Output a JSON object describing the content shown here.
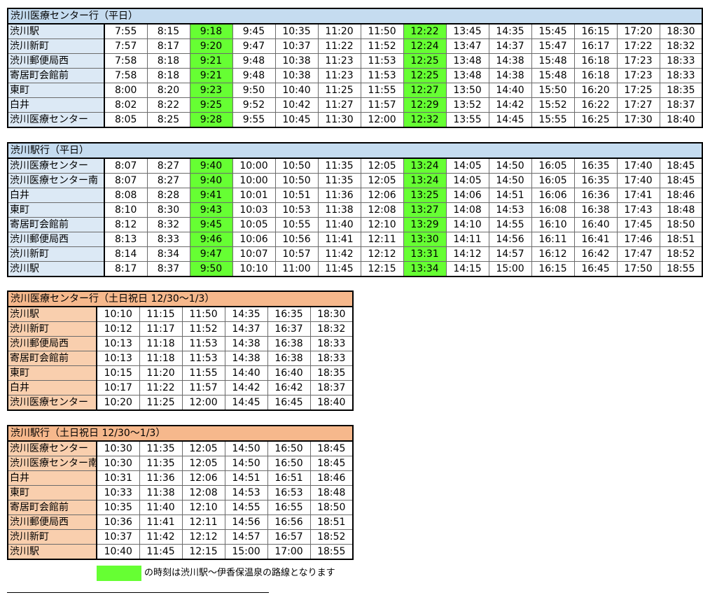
{
  "colors": {
    "highlight": "#66ff33",
    "weekday_header": "#c5dcf0",
    "weekday_stop": "#dce9f5",
    "holiday_header": "#f6b88c",
    "holiday_stop": "#f9cfae"
  },
  "tables": [
    {
      "id": "t1",
      "kind": "weekday",
      "title": "渋川医療センター行（平日）",
      "col_widths": [
        138,
        61,
        61,
        61,
        61,
        61,
        61,
        61,
        61,
        61,
        61,
        61,
        61,
        61,
        61
      ],
      "highlight_cols": [
        2,
        7
      ],
      "rows": [
        {
          "stop": "渋川駅",
          "times": [
            "7:55",
            "8:15",
            "9:18",
            "9:45",
            "10:35",
            "11:20",
            "11:50",
            "12:22",
            "13:45",
            "14:35",
            "15:45",
            "16:15",
            "17:20",
            "18:30"
          ]
        },
        {
          "stop": "渋川新町",
          "times": [
            "7:57",
            "8:17",
            "9:20",
            "9:47",
            "10:37",
            "11:22",
            "11:52",
            "12:24",
            "13:47",
            "14:37",
            "15:47",
            "16:17",
            "17:22",
            "18:32"
          ]
        },
        {
          "stop": "渋川郵便局西",
          "times": [
            "7:58",
            "8:18",
            "9:21",
            "9:48",
            "10:38",
            "11:23",
            "11:53",
            "12:25",
            "13:48",
            "14:38",
            "15:48",
            "16:18",
            "17:23",
            "18:33"
          ]
        },
        {
          "stop": "寄居町会館前",
          "times": [
            "7:58",
            "8:18",
            "9:21",
            "9:48",
            "10:38",
            "11:23",
            "11:53",
            "12:25",
            "13:48",
            "14:38",
            "15:48",
            "16:18",
            "17:23",
            "18:33"
          ]
        },
        {
          "stop": "東町",
          "times": [
            "8:00",
            "8:20",
            "9:23",
            "9:50",
            "10:40",
            "11:25",
            "11:55",
            "12:27",
            "13:50",
            "14:40",
            "15:50",
            "16:20",
            "17:25",
            "18:35"
          ]
        },
        {
          "stop": "白井",
          "times": [
            "8:02",
            "8:22",
            "9:25",
            "9:52",
            "10:42",
            "11:27",
            "11:57",
            "12:29",
            "13:52",
            "14:42",
            "15:52",
            "16:22",
            "17:27",
            "18:37"
          ]
        },
        {
          "stop": "渋川医療センター",
          "times": [
            "8:05",
            "8:25",
            "9:28",
            "9:55",
            "10:45",
            "11:30",
            "12:00",
            "12:32",
            "13:55",
            "14:45",
            "15:55",
            "16:25",
            "17:30",
            "18:40"
          ]
        }
      ]
    },
    {
      "id": "t2",
      "kind": "weekday",
      "title": "渋川駅行（平日）",
      "col_widths": [
        138,
        61,
        61,
        61,
        61,
        61,
        61,
        61,
        61,
        61,
        61,
        61,
        61,
        61,
        61
      ],
      "highlight_cols": [
        2,
        7
      ],
      "rows": [
        {
          "stop": "渋川医療センター",
          "times": [
            "8:07",
            "8:27",
            "9:40",
            "10:00",
            "10:50",
            "11:35",
            "12:05",
            "13:24",
            "14:05",
            "14:50",
            "16:05",
            "16:35",
            "17:40",
            "18:45"
          ]
        },
        {
          "stop": "渋川医療センター南",
          "times": [
            "8:07",
            "8:27",
            "9:40",
            "10:00",
            "10:50",
            "11:35",
            "12:05",
            "13:24",
            "14:05",
            "14:50",
            "16:05",
            "16:35",
            "17:40",
            "18:45"
          ]
        },
        {
          "stop": "白井",
          "times": [
            "8:08",
            "8:28",
            "9:41",
            "10:01",
            "10:51",
            "11:36",
            "12:06",
            "13:25",
            "14:06",
            "14:51",
            "16:06",
            "16:36",
            "17:41",
            "18:46"
          ]
        },
        {
          "stop": "東町",
          "times": [
            "8:10",
            "8:30",
            "9:43",
            "10:03",
            "10:53",
            "11:38",
            "12:08",
            "13:27",
            "14:08",
            "14:53",
            "16:08",
            "16:38",
            "17:43",
            "18:48"
          ]
        },
        {
          "stop": "寄居町会館前",
          "times": [
            "8:12",
            "8:32",
            "9:45",
            "10:05",
            "10:55",
            "11:40",
            "12:10",
            "13:29",
            "14:10",
            "14:55",
            "16:10",
            "16:40",
            "17:45",
            "18:50"
          ]
        },
        {
          "stop": "渋川郵便局西",
          "times": [
            "8:13",
            "8:33",
            "9:46",
            "10:06",
            "10:56",
            "11:41",
            "12:11",
            "13:30",
            "14:11",
            "14:56",
            "16:11",
            "16:41",
            "17:46",
            "18:51"
          ]
        },
        {
          "stop": "渋川新町",
          "times": [
            "8:14",
            "8:34",
            "9:47",
            "10:07",
            "10:57",
            "11:42",
            "12:12",
            "13:31",
            "14:12",
            "14:57",
            "16:12",
            "16:42",
            "17:47",
            "18:52"
          ]
        },
        {
          "stop": "渋川駅",
          "times": [
            "8:17",
            "8:37",
            "9:50",
            "10:10",
            "11:00",
            "11:45",
            "12:15",
            "13:34",
            "14:15",
            "15:00",
            "16:15",
            "16:45",
            "17:50",
            "18:55"
          ]
        }
      ]
    },
    {
      "id": "t3",
      "kind": "holiday",
      "title": "渋川医療センター行（土日祝日  12/30～1/3）",
      "col_widths": [
        127,
        61,
        61,
        61,
        61,
        61,
        61
      ],
      "highlight_cols": [],
      "rows": [
        {
          "stop": "渋川駅",
          "times": [
            "10:10",
            "11:15",
            "11:50",
            "14:35",
            "16:35",
            "18:30"
          ]
        },
        {
          "stop": "渋川新町",
          "times": [
            "10:12",
            "11:17",
            "11:52",
            "14:37",
            "16:37",
            "18:32"
          ]
        },
        {
          "stop": "渋川郵便局西",
          "times": [
            "10:13",
            "11:18",
            "11:53",
            "14:38",
            "16:38",
            "18:33"
          ]
        },
        {
          "stop": "寄居町会館前",
          "times": [
            "10:13",
            "11:18",
            "11:53",
            "14:38",
            "16:38",
            "18:33"
          ]
        },
        {
          "stop": "東町",
          "times": [
            "10:15",
            "11:20",
            "11:55",
            "14:40",
            "16:40",
            "18:35"
          ]
        },
        {
          "stop": "白井",
          "times": [
            "10:17",
            "11:22",
            "11:57",
            "14:42",
            "16:42",
            "18:37"
          ]
        },
        {
          "stop": "渋川医療センター",
          "times": [
            "10:20",
            "11:25",
            "12:00",
            "14:45",
            "16:45",
            "18:40"
          ]
        }
      ]
    },
    {
      "id": "t4",
      "kind": "holiday",
      "title": "渋川駅行（土日祝日  12/30～1/3）",
      "col_widths": [
        127,
        61,
        61,
        61,
        61,
        61,
        61
      ],
      "highlight_cols": [],
      "rows": [
        {
          "stop": "渋川医療センター",
          "times": [
            "10:30",
            "11:35",
            "12:05",
            "14:50",
            "16:50",
            "18:45"
          ]
        },
        {
          "stop": "渋川医療センター南",
          "times": [
            "10:30",
            "11:35",
            "12:05",
            "14:50",
            "16:50",
            "18:45"
          ]
        },
        {
          "stop": "白井",
          "times": [
            "10:31",
            "11:36",
            "12:06",
            "14:51",
            "16:51",
            "18:46"
          ]
        },
        {
          "stop": "東町",
          "times": [
            "10:33",
            "11:38",
            "12:08",
            "14:53",
            "16:53",
            "18:48"
          ]
        },
        {
          "stop": "寄居町会館前",
          "times": [
            "10:35",
            "11:40",
            "12:10",
            "14:55",
            "16:55",
            "18:50"
          ]
        },
        {
          "stop": "渋川郵便局西",
          "times": [
            "10:36",
            "11:41",
            "12:11",
            "14:56",
            "16:56",
            "18:51"
          ]
        },
        {
          "stop": "渋川新町",
          "times": [
            "10:37",
            "11:42",
            "12:12",
            "14:57",
            "16:57",
            "18:52"
          ]
        },
        {
          "stop": "渋川駅",
          "times": [
            "10:40",
            "11:45",
            "12:15",
            "15:00",
            "17:00",
            "18:55"
          ]
        }
      ]
    }
  ],
  "legend": {
    "text": "の時刻は渋川駅～伊香保温泉の路線となります"
  }
}
